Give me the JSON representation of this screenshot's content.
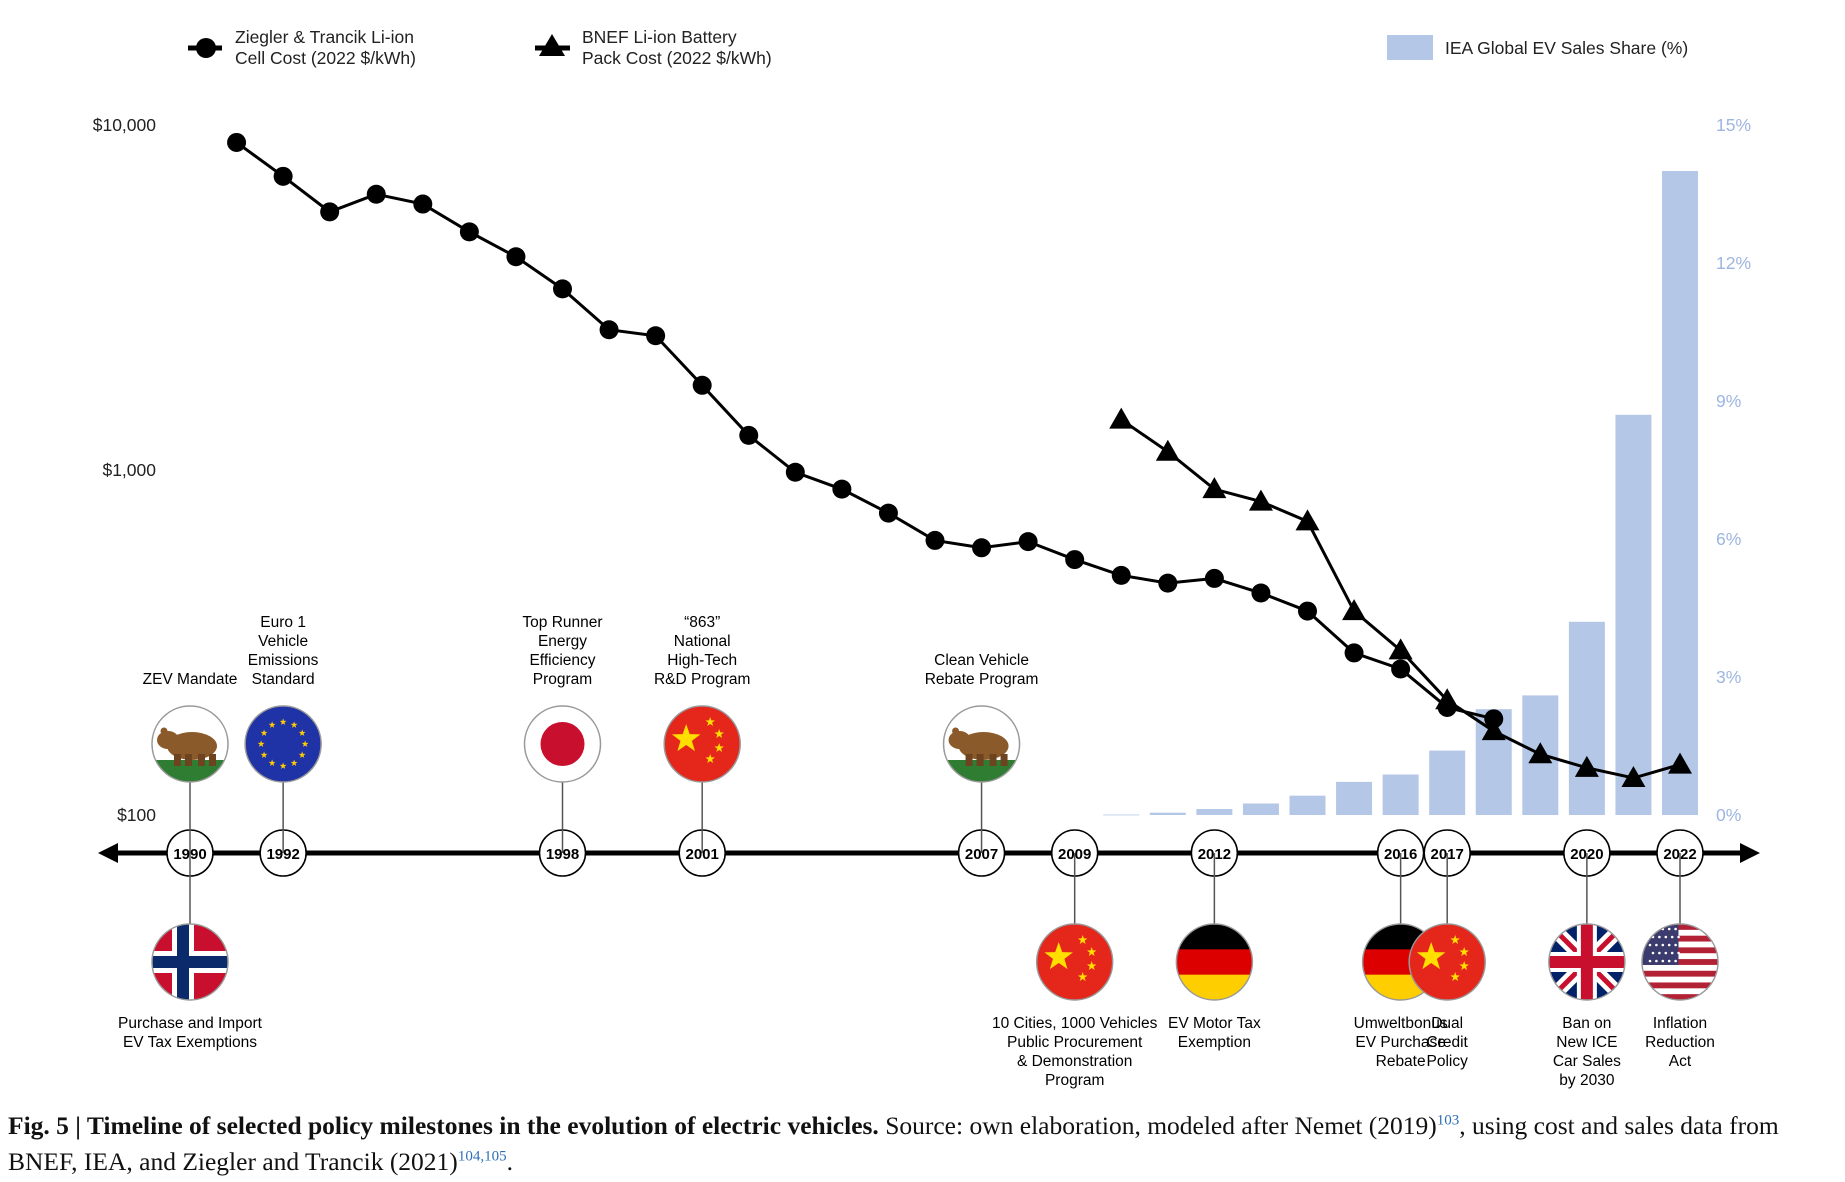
{
  "legend": {
    "ziegler": [
      "Ziegler & Trancik Li-ion",
      "Cell Cost (2022 $/kWh)"
    ],
    "bnef": [
      "BNEF Li-ion Battery",
      "Pack Cost (2022 $/kWh)"
    ],
    "iea": "IEA Global EV Sales Share (%)"
  },
  "colors": {
    "line": "#000000",
    "bar": "#b4c7e7",
    "right_axis": "#9db5e0"
  },
  "chart_data": {
    "type": "line",
    "y_left": {
      "scale": "log",
      "range": [
        100,
        10000
      ],
      "tick_labels": [
        "$10,000",
        "$1,000",
        "$100"
      ]
    },
    "y_right": {
      "range": [
        0,
        15
      ],
      "tick_labels": [
        "15%",
        "12%",
        "9%",
        "6%",
        "3%",
        "0%"
      ]
    },
    "x": {
      "range": [
        1990,
        2022
      ]
    },
    "series": [
      {
        "name": "Ziegler & Trancik Li-ion Cell Cost (2022 $/kWh)",
        "type": "line",
        "marker": "circle",
        "axis": "left",
        "points": [
          [
            1991,
            8900
          ],
          [
            1992,
            7100
          ],
          [
            1993,
            5600
          ],
          [
            1994,
            6300
          ],
          [
            1995,
            5900
          ],
          [
            1996,
            4900
          ],
          [
            1997,
            4150
          ],
          [
            1998,
            3350
          ],
          [
            1999,
            2550
          ],
          [
            2000,
            2450
          ],
          [
            2001,
            1760
          ],
          [
            2002,
            1260
          ],
          [
            2003,
            985
          ],
          [
            2004,
            880
          ],
          [
            2005,
            750
          ],
          [
            2006,
            625
          ],
          [
            2007,
            595
          ],
          [
            2008,
            620
          ],
          [
            2009,
            550
          ],
          [
            2010,
            495
          ],
          [
            2011,
            470
          ],
          [
            2012,
            485
          ],
          [
            2013,
            440
          ],
          [
            2014,
            390
          ],
          [
            2015,
            295
          ],
          [
            2016,
            265
          ],
          [
            2017,
            205
          ],
          [
            2018,
            190
          ]
        ]
      },
      {
        "name": "BNEF Li-ion Battery Pack Cost (2022 $/kWh)",
        "type": "line",
        "marker": "triangle",
        "axis": "left",
        "points": [
          [
            2010,
            1400
          ],
          [
            2011,
            1130
          ],
          [
            2012,
            880
          ],
          [
            2013,
            810
          ],
          [
            2014,
            710
          ],
          [
            2015,
            390
          ],
          [
            2016,
            300
          ],
          [
            2017,
            215
          ],
          [
            2018,
            175
          ],
          [
            2019,
            150
          ],
          [
            2020,
            137
          ],
          [
            2021,
            128
          ],
          [
            2022,
            140
          ]
        ]
      },
      {
        "name": "IEA Global EV Sales Share (%)",
        "type": "bar",
        "axis": "right",
        "points": [
          [
            2010,
            0.01
          ],
          [
            2011,
            0.05
          ],
          [
            2012,
            0.13
          ],
          [
            2013,
            0.25
          ],
          [
            2014,
            0.42
          ],
          [
            2015,
            0.72
          ],
          [
            2016,
            0.88
          ],
          [
            2017,
            1.4
          ],
          [
            2018,
            2.3
          ],
          [
            2019,
            2.6
          ],
          [
            2020,
            4.2
          ],
          [
            2021,
            8.7
          ],
          [
            2022,
            14.0
          ]
        ]
      }
    ]
  },
  "timeline": {
    "years": [
      {
        "year": 1990,
        "label": "1990"
      },
      {
        "year": 1992,
        "label": "1992"
      },
      {
        "year": 1998,
        "label": "1998"
      },
      {
        "year": 2001,
        "label": "2001"
      },
      {
        "year": 2007,
        "label": "2007"
      },
      {
        "year": 2009,
        "label": "2009"
      },
      {
        "year": 2012,
        "label": "2012"
      },
      {
        "year": 2016,
        "label": "2016"
      },
      {
        "year": 2017,
        "label": "2017"
      },
      {
        "year": 2020,
        "label": "2020"
      },
      {
        "year": 2022,
        "label": "2022"
      }
    ],
    "above": [
      {
        "year": 1990,
        "flag": "california-bear-flag",
        "lines": [
          "ZEV Mandate"
        ]
      },
      {
        "year": 1992,
        "flag": "eu-flag",
        "lines": [
          "Euro 1",
          "Vehicle",
          "Emissions",
          "Standard"
        ]
      },
      {
        "year": 1998,
        "flag": "japan-flag",
        "lines": [
          "Top Runner",
          "Energy",
          "Efficiency",
          "Program"
        ]
      },
      {
        "year": 2001,
        "flag": "china-flag",
        "lines": [
          "“863”",
          "National",
          "High-Tech",
          "R&D Program"
        ]
      },
      {
        "year": 2007,
        "flag": "california-bear-flag",
        "lines": [
          "Clean Vehicle",
          "Rebate Program"
        ]
      }
    ],
    "below": [
      {
        "year": 1990,
        "flag": "norway-flag",
        "lines": [
          "Purchase and Import",
          "EV Tax Exemptions"
        ]
      },
      {
        "year": 2009,
        "flag": "china-flag",
        "lines": [
          "10 Cities, 1000 Vehicles",
          "Public Procurement",
          "& Demonstration",
          "Program"
        ]
      },
      {
        "year": 2012,
        "flag": "germany-flag",
        "lines": [
          "EV Motor Tax",
          "Exemption"
        ]
      },
      {
        "year": 2016,
        "flag": "germany-flag",
        "lines": [
          "Umweltbonus",
          "EV Purchase",
          "Rebate"
        ]
      },
      {
        "year": 2017,
        "flag": "china-flag",
        "lines": [
          "Dual",
          "Credit",
          "Policy"
        ]
      },
      {
        "year": 2020,
        "flag": "uk-flag",
        "lines": [
          "Ban on",
          "New ICE",
          "Car Sales",
          "by 2030"
        ]
      },
      {
        "year": 2022,
        "flag": "usa-flag",
        "lines": [
          "Inflation",
          "Reduction",
          "Act"
        ]
      }
    ]
  },
  "caption": {
    "title": "Fig. 5 | Timeline of selected policy milestones in the evolution of electric vehicles.",
    "text_1": " Source: own elaboration, modeled after Nemet (2019)",
    "ref_1": "103",
    "text_2": ", using cost and sales data from BNEF, IEA, and Ziegler and Trancik (2021)",
    "ref_2": "104,105",
    "text_3": "."
  }
}
